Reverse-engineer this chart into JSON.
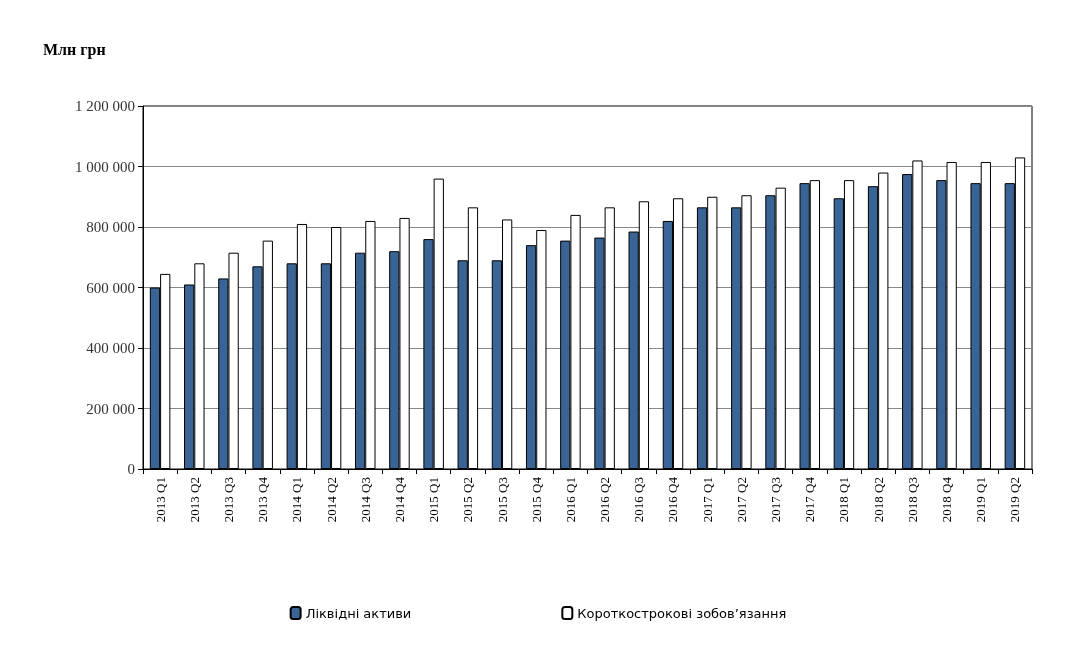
{
  "chart_data": {
    "type": "bar",
    "ylabel": "Млн грн",
    "categories": [
      "2013 Q1",
      "2013 Q2",
      "2013 Q3",
      "2013 Q4",
      "2014 Q1",
      "2014 Q2",
      "2014 Q3",
      "2014 Q4",
      "2015 Q1",
      "2015 Q2",
      "2015 Q3",
      "2015 Q4",
      "2016 Q1",
      "2016 Q2",
      "2016 Q3",
      "2016 Q4",
      "2017 Q1",
      "2017 Q2",
      "2017 Q3",
      "2017 Q4",
      "2018 Q1",
      "2018 Q2",
      "2018 Q3",
      "2018 Q4",
      "2019 Q1",
      "2019 Q2"
    ],
    "series": [
      {
        "name": "Ліквідні активи",
        "color": "#3a6496",
        "values": [
          600000,
          610000,
          630000,
          670000,
          680000,
          680000,
          715000,
          720000,
          760000,
          690000,
          690000,
          740000,
          755000,
          765000,
          785000,
          820000,
          865000,
          865000,
          905000,
          945000,
          895000,
          935000,
          975000,
          955000,
          945000,
          945000
        ]
      },
      {
        "name": "Короткострокові зобов’язання",
        "color": "#ffffff",
        "values": [
          645000,
          680000,
          715000,
          755000,
          810000,
          800000,
          820000,
          830000,
          960000,
          865000,
          825000,
          790000,
          840000,
          865000,
          885000,
          895000,
          900000,
          905000,
          930000,
          955000,
          955000,
          980000,
          1020000,
          1015000,
          1015000,
          1030000
        ]
      }
    ],
    "ylim": [
      0,
      1200000
    ],
    "yticks": [
      0,
      {
        "value": 200000,
        "label": "200 000"
      },
      {
        "value": 400000,
        "label": "400 000"
      },
      {
        "value": 600000,
        "label": "600 000"
      },
      {
        "value": 800000,
        "label": "800 000"
      },
      {
        "value": 1000000,
        "label": "1 000 000"
      },
      {
        "value": 1200000,
        "label": "1 200 000"
      }
    ],
    "grid": "y",
    "legend": "bottom"
  }
}
